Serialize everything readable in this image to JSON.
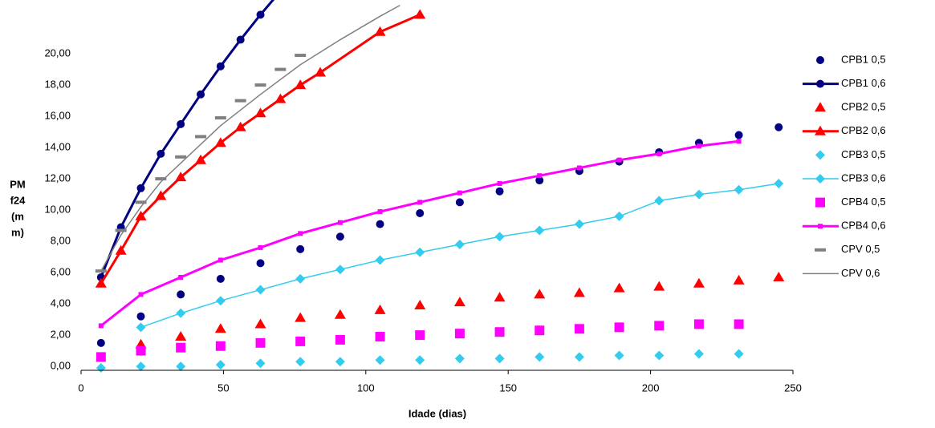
{
  "chart_data": {
    "type": "scatter",
    "xlabel": "Idade (dias)",
    "ylabel": [
      "PM",
      "f24",
      "(m",
      "m)"
    ],
    "xlim": [
      0,
      250
    ],
    "xticks": [
      0,
      50,
      100,
      150,
      200,
      250
    ],
    "ylim": [
      0,
      23.5
    ],
    "yticks": [
      {
        "value": 0,
        "label": "0,00"
      },
      {
        "value": 2,
        "label": "2,00"
      },
      {
        "value": 4,
        "label": "4,00"
      },
      {
        "value": 6,
        "label": "6,00"
      },
      {
        "value": 8,
        "label": "8,00"
      },
      {
        "value": 10,
        "label": "10,00"
      },
      {
        "value": 12,
        "label": "12,00"
      },
      {
        "value": 14,
        "label": "14,00"
      },
      {
        "value": 16,
        "label": "16,00"
      },
      {
        "value": 18,
        "label": "18,00"
      },
      {
        "value": 20,
        "label": "20,00"
      }
    ],
    "series": [
      {
        "name": "CPB1 0,5",
        "color": "#000080",
        "marker": "circle",
        "line": 0,
        "x": [
          7,
          21,
          35,
          49,
          63,
          77,
          91,
          105,
          119,
          133,
          147,
          161,
          175,
          189,
          203,
          217,
          231,
          245
        ],
        "values": [
          1.7,
          3.4,
          4.8,
          5.8,
          6.8,
          7.7,
          8.5,
          9.3,
          10.0,
          10.7,
          11.4,
          12.1,
          12.7,
          13.3,
          13.9,
          14.5,
          15.0,
          15.5
        ]
      },
      {
        "name": "CPB1 0,6",
        "color": "#000080",
        "marker": "circle",
        "line": 3,
        "x": [
          7,
          14,
          21,
          28,
          35,
          42,
          49,
          56,
          63,
          70
        ],
        "values": [
          5.9,
          9.1,
          11.6,
          13.8,
          15.7,
          17.6,
          19.4,
          21.1,
          22.7,
          24.2
        ]
      },
      {
        "name": "CPB2 0,5",
        "color": "#ff0000",
        "marker": "triangle",
        "line": 0,
        "x": [
          21,
          35,
          49,
          63,
          77,
          91,
          105,
          119,
          133,
          147,
          161,
          175,
          189,
          203,
          217,
          231,
          245
        ],
        "values": [
          1.6,
          2.1,
          2.6,
          2.9,
          3.3,
          3.5,
          3.8,
          4.1,
          4.3,
          4.6,
          4.8,
          4.9,
          5.2,
          5.3,
          5.5,
          5.7,
          5.9
        ]
      },
      {
        "name": "CPB2 0,6",
        "color": "#ff0000",
        "marker": "triangle",
        "line": 3,
        "x": [
          7,
          14,
          21,
          28,
          35,
          42,
          49,
          56,
          63,
          70,
          77,
          84,
          105,
          119
        ],
        "values": [
          5.5,
          7.6,
          9.8,
          11.1,
          12.3,
          13.4,
          14.5,
          15.5,
          16.4,
          17.3,
          18.2,
          19.0,
          21.6,
          22.7
        ]
      },
      {
        "name": "CPB3 0,5",
        "color": "#33ccee",
        "marker": "diamond",
        "line": 0,
        "x": [
          7,
          21,
          35,
          49,
          63,
          77,
          91,
          105,
          119,
          133,
          147,
          161,
          175,
          189,
          203,
          217,
          231
        ],
        "values": [
          0.1,
          0.2,
          0.2,
          0.3,
          0.4,
          0.5,
          0.5,
          0.6,
          0.6,
          0.7,
          0.7,
          0.8,
          0.8,
          0.9,
          0.9,
          1.0,
          1.0
        ]
      },
      {
        "name": "CPB3 0,6",
        "color": "#33ccee",
        "marker": "diamond",
        "line": 1.5,
        "x": [
          21,
          35,
          49,
          63,
          77,
          91,
          105,
          119,
          133,
          147,
          161,
          175,
          189,
          203,
          217,
          231,
          245
        ],
        "values": [
          2.7,
          3.6,
          4.4,
          5.1,
          5.8,
          6.4,
          7.0,
          7.5,
          8.0,
          8.5,
          8.9,
          9.3,
          9.8,
          10.8,
          11.2,
          11.5,
          11.9
        ]
      },
      {
        "name": "CPB4 0,5",
        "color": "#ff00ff",
        "marker": "square",
        "line": 0,
        "x": [
          7,
          21,
          35,
          49,
          63,
          77,
          91,
          105,
          119,
          133,
          147,
          161,
          175,
          189,
          203,
          217,
          231
        ],
        "values": [
          0.8,
          1.2,
          1.4,
          1.5,
          1.7,
          1.8,
          1.9,
          2.1,
          2.2,
          2.3,
          2.4,
          2.5,
          2.6,
          2.7,
          2.8,
          2.9,
          2.9
        ]
      },
      {
        "name": "CPB4 0,6",
        "color": "#ff00ff",
        "marker": "small",
        "line": 3,
        "x": [
          7,
          21,
          35,
          49,
          63,
          77,
          91,
          105,
          119,
          133,
          147,
          161,
          175,
          189,
          203,
          217,
          231
        ],
        "values": [
          2.8,
          4.8,
          5.9,
          7.0,
          7.8,
          8.7,
          9.4,
          10.1,
          10.7,
          11.3,
          11.9,
          12.4,
          12.9,
          13.4,
          13.8,
          14.3,
          14.6
        ]
      },
      {
        "name": "CPV 0,5",
        "color": "#808080",
        "marker": "dash",
        "line": 0,
        "x": [
          7,
          14,
          21,
          28,
          35,
          42,
          49,
          56,
          63,
          70,
          77
        ],
        "values": [
          6.3,
          8.9,
          10.7,
          12.2,
          13.6,
          14.9,
          16.1,
          17.2,
          18.2,
          19.2,
          20.1
        ]
      },
      {
        "name": "CPV 0,6",
        "color": "#808080",
        "marker": "none",
        "line": 1.5,
        "x": [
          7,
          14,
          21,
          28,
          35,
          49,
          63,
          77,
          91,
          105,
          112
        ],
        "values": [
          6.3,
          8.6,
          10.4,
          12.0,
          13.2,
          15.6,
          17.6,
          19.5,
          21.1,
          22.6,
          23.3
        ]
      }
    ]
  }
}
